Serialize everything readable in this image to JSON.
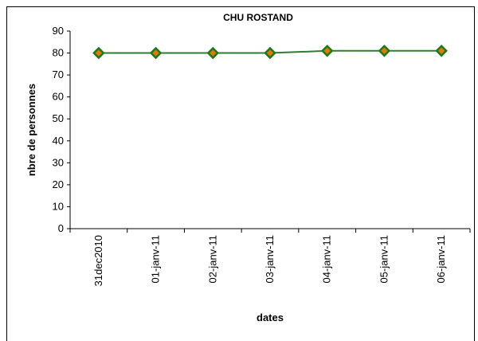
{
  "chart_data": {
    "type": "line",
    "title": "CHU ROSTAND",
    "xlabel": "dates",
    "ylabel": "nbre de personnes",
    "categories": [
      "31dec2010",
      "01-janv-11",
      "02-janv-11",
      "03-janv-11",
      "04-janv-11",
      "05-janv-11",
      "06-janv-11"
    ],
    "series": [
      {
        "values": [
          80,
          80,
          80,
          80,
          81,
          81,
          81
        ],
        "line_color": "#2e7d32",
        "marker_fill": "#e07b00",
        "marker_border": "#1b7a1b"
      }
    ],
    "ylim": [
      0,
      90
    ],
    "yticks": [
      0,
      10,
      20,
      30,
      40,
      50,
      60,
      70,
      80,
      90
    ],
    "grid": false,
    "legend": "none"
  }
}
